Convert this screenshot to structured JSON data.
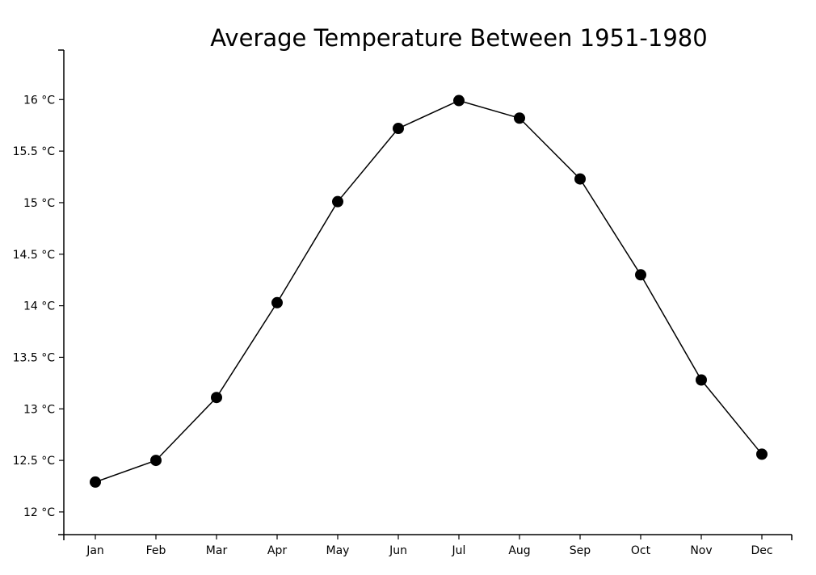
{
  "chart_data": {
    "type": "line",
    "title": "Average Temperature Between 1951-1980",
    "xlabel": "",
    "ylabel": "",
    "categories": [
      "Jan",
      "Feb",
      "Mar",
      "Apr",
      "May",
      "Jun",
      "Jul",
      "Aug",
      "Sep",
      "Oct",
      "Nov",
      "Dec"
    ],
    "series": [
      {
        "values": [
          12.29,
          12.5,
          13.11,
          14.03,
          15.01,
          15.72,
          15.99,
          15.82,
          15.23,
          14.3,
          13.28,
          12.56
        ]
      }
    ],
    "y_ticks": [
      12,
      12.5,
      13,
      13.5,
      14,
      14.5,
      15,
      15.5,
      16
    ],
    "y_tick_labels": [
      "12 °C",
      "12.5 °C",
      "13 °C",
      "13.5 °C",
      "14 °C",
      "14.5 °C",
      "15 °C",
      "15.5 °C",
      "16 °C"
    ],
    "ylim": [
      11.78,
      16.48
    ],
    "grid": false,
    "legend": "none",
    "colors": {
      "line": "#000000",
      "marker": "#000000",
      "axis": "#000000"
    }
  }
}
